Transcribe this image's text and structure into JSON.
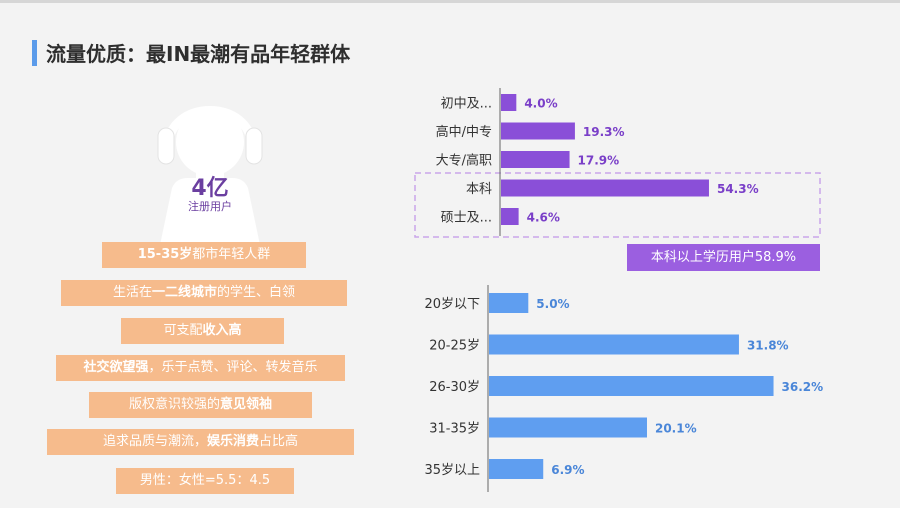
{
  "header": {
    "title": "流量优质：最IN最潮有品年轻群体"
  },
  "user_count": {
    "value": "4亿",
    "label": "注册用户"
  },
  "tags": [
    {
      "pre": "",
      "bold": "15-35岁",
      "post": "都市年轻人群"
    },
    {
      "pre": "生活在",
      "bold": "一二线城市",
      "post": "的学生、白领"
    },
    {
      "pre": "可支配",
      "bold": "收入高",
      "post": ""
    },
    {
      "pre": "",
      "bold": "社交欲望强",
      "post": "，乐于点赞、评论、转发音乐"
    },
    {
      "pre": "版权意识较强的",
      "bold": "意见领袖",
      "post": ""
    },
    {
      "pre": "追求品质与潮流，",
      "bold": "娱乐消费",
      "post": "占比高"
    },
    {
      "pre": "男性：女性=5.5：4.5",
      "bold": "",
      "post": ""
    }
  ],
  "edu_badge": "本科以上学历用户58.9%",
  "colors": {
    "purple": "#8a4fd8",
    "blue": "#5f9ef0",
    "tag": "#f6bb8c",
    "accent": "#5b9bea"
  },
  "chart_data": [
    {
      "type": "bar",
      "orientation": "horizontal",
      "categories": [
        "初中及...",
        "高中/中专",
        "大专/高职",
        "本科",
        "硕士及..."
      ],
      "values": [
        4.0,
        19.3,
        17.9,
        54.3,
        4.6
      ],
      "value_labels": [
        "4.0%",
        "19.3%",
        "17.9%",
        "54.3%",
        "4.6%"
      ],
      "highlight": [
        "本科",
        "硕士及..."
      ]
    },
    {
      "type": "bar",
      "orientation": "horizontal",
      "categories": [
        "20岁以下",
        "20-25岁",
        "26-30岁",
        "31-35岁",
        "35岁以上"
      ],
      "values": [
        5.0,
        31.8,
        36.2,
        20.1,
        6.9
      ],
      "value_labels": [
        "5.0%",
        "31.8%",
        "36.2%",
        "20.1%",
        "6.9%"
      ]
    }
  ]
}
